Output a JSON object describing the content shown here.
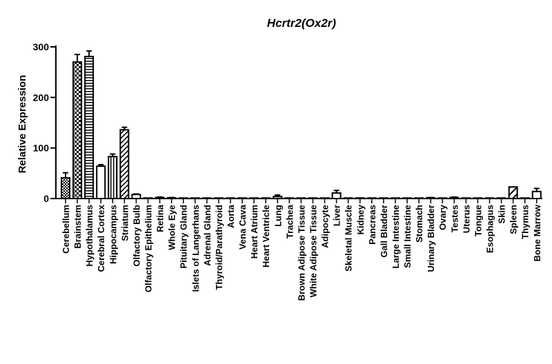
{
  "chart_data": {
    "type": "bar",
    "title": "Hcrtr2(Ox2r)",
    "xlabel": "",
    "ylabel": "Relative Expression",
    "ylim": [
      0,
      300
    ],
    "yticks": [
      "0",
      "100",
      "200",
      "300"
    ],
    "grid": false,
    "legend": "none",
    "categories": [
      "Cerebellum",
      "Brainstem",
      "Hypothalamus",
      "Cerebral Cortex",
      "Hippocampus",
      "Striatum",
      "Olfactory Bulb",
      "Olfactory Epithelium",
      "Retina",
      "Whole Eye",
      "Pituitary Gland",
      "Islets of Langerhans",
      "Adrenal Gland",
      "Thyroid/Parathyroid",
      "Aorta",
      "Vena Cava",
      "Heart Atrium",
      "Heart Ventricle",
      "Lung",
      "Trachea",
      "Brown Adipose Tissue",
      "White Adipose Tissue",
      "Adipocyte",
      "Liver",
      "Skeletal Muscle",
      "Kidney",
      "Pancreas",
      "Gall Bladder",
      "Large Intestine",
      "Small Intestine",
      "Stomach",
      "Urinary Bladder",
      "Ovary",
      "Testes",
      "Uterus",
      "Tongue",
      "Esophagus",
      "Skin",
      "Spleen",
      "Thymus",
      "Bone Marrow"
    ],
    "values": [
      41,
      270,
      281,
      64,
      83,
      136,
      8,
      0.5,
      2,
      1.5,
      0.5,
      0.5,
      0.5,
      0.5,
      0.5,
      0.5,
      0.5,
      0.5,
      4,
      0.5,
      0.5,
      0.5,
      0.5,
      11,
      0.5,
      0.5,
      0.5,
      0.5,
      0.5,
      0.5,
      0.5,
      1.5,
      0.5,
      2,
      0.5,
      0.5,
      0.5,
      0.5,
      23,
      0.5,
      14
    ],
    "errors": [
      10,
      15,
      11,
      3,
      5,
      5,
      1,
      0,
      1,
      0.5,
      0,
      0,
      0,
      0,
      0,
      0,
      0,
      0,
      3,
      0,
      0,
      0,
      0,
      5,
      0,
      0,
      0,
      0,
      0,
      0,
      0,
      0.5,
      0,
      1,
      0,
      0,
      0,
      0,
      0,
      0,
      6
    ],
    "patterns": [
      "checker-small",
      "checker-large",
      "hstripe",
      "empty",
      "vstripe",
      "diag-right",
      "solid-thin",
      "empty",
      "empty",
      "empty",
      "empty",
      "empty",
      "empty",
      "empty",
      "empty",
      "empty",
      "empty",
      "empty",
      "empty",
      "empty",
      "empty",
      "empty",
      "empty",
      "empty",
      "empty",
      "empty",
      "empty",
      "empty",
      "empty",
      "empty",
      "empty",
      "empty",
      "empty",
      "empty",
      "empty",
      "empty",
      "empty",
      "empty",
      "diag-wide",
      "empty",
      "empty"
    ]
  }
}
